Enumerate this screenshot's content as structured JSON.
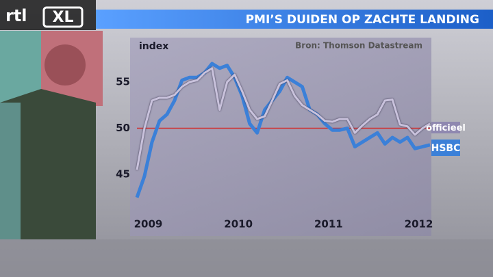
{
  "logo": [
    "rtl",
    "XL"
  ],
  "chart_data": {
    "type": "line",
    "title": "PMI’S DUIDEN OP ZACHTE LANDING",
    "y_label": "index",
    "source": "Bron: Thomson Datastream",
    "x": [
      2008.875,
      2008.958,
      2009.042,
      2009.125,
      2009.208,
      2009.292,
      2009.375,
      2009.458,
      2009.542,
      2009.625,
      2009.708,
      2009.792,
      2009.875,
      2009.958,
      2010.042,
      2010.125,
      2010.208,
      2010.292,
      2010.375,
      2010.458,
      2010.542,
      2010.625,
      2010.708,
      2010.792,
      2010.875,
      2010.958,
      2011.042,
      2011.125,
      2011.208,
      2011.292,
      2011.375,
      2011.458,
      2011.542,
      2011.625,
      2011.708,
      2011.792,
      2011.875,
      2011.958,
      2012.042,
      2012.125
    ],
    "series": [
      {
        "name": "officieel",
        "color": "#c9c2dc",
        "values": [
          45.5,
          50.0,
          53.0,
          53.3,
          53.3,
          53.6,
          54.5,
          55.0,
          55.2,
          56.0,
          56.5,
          52.0,
          55.0,
          55.8,
          54.0,
          52.0,
          51.0,
          51.3,
          53.0,
          54.8,
          55.2,
          53.5,
          52.5,
          52.0,
          51.5,
          50.8,
          50.7,
          51.0,
          51.0,
          49.5,
          50.3,
          51.0,
          51.5,
          53.0,
          53.1,
          50.4,
          50.2,
          49.3,
          50.0,
          50.5
        ]
      },
      {
        "name": "HSBC",
        "color": "#3b80d8",
        "values": [
          42.5,
          44.8,
          48.5,
          50.8,
          51.5,
          53.0,
          55.2,
          55.5,
          55.5,
          56.0,
          57.0,
          56.5,
          56.8,
          55.5,
          53.5,
          50.5,
          49.5,
          52.0,
          53.0,
          54.0,
          55.5,
          55.0,
          54.5,
          52.0,
          51.5,
          50.5,
          49.8,
          49.8,
          50.0,
          48.0,
          48.5,
          49.0,
          49.5,
          48.3,
          49.0,
          48.5,
          49.0,
          47.8,
          48.0,
          48.2
        ]
      }
    ],
    "reference_line": {
      "value": 50,
      "color": "#d03030"
    },
    "xlim": [
      2008.875,
      2012.125
    ],
    "xticks": [
      2009,
      2010,
      2011,
      2012
    ],
    "ylim": [
      41,
      58
    ],
    "yticks": [
      45,
      50,
      55
    ]
  }
}
